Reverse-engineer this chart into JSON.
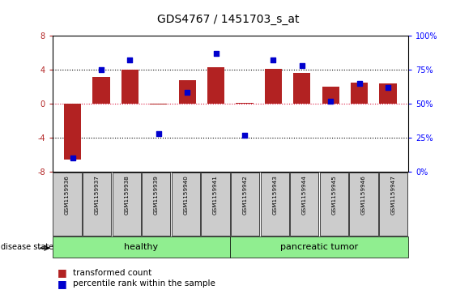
{
  "title": "GDS4767 / 1451703_s_at",
  "samples": [
    "GSM1159936",
    "GSM1159937",
    "GSM1159938",
    "GSM1159939",
    "GSM1159940",
    "GSM1159941",
    "GSM1159942",
    "GSM1159943",
    "GSM1159944",
    "GSM1159945",
    "GSM1159946",
    "GSM1159947"
  ],
  "transformed_count": [
    -6.5,
    3.1,
    4.0,
    -0.1,
    2.7,
    4.3,
    0.1,
    4.1,
    3.6,
    2.0,
    2.5,
    2.4
  ],
  "percentile_rank": [
    10,
    75,
    82,
    28,
    58,
    87,
    27,
    82,
    78,
    52,
    65,
    62
  ],
  "ylim": [
    -8,
    8
  ],
  "ylim_right": [
    0,
    100
  ],
  "yticks_left": [
    -8,
    -4,
    0,
    4,
    8
  ],
  "yticks_right": [
    0,
    25,
    50,
    75,
    100
  ],
  "bar_color": "#B22222",
  "dot_color": "#0000CD",
  "hline_color": "#DC143C",
  "bg_color": "#FFFFFF",
  "label_bg": "#CCCCCC",
  "healthy_color": "#90EE90",
  "tumor_color": "#90EE90",
  "title_fontsize": 10,
  "healthy_range": [
    0,
    5
  ],
  "tumor_range": [
    6,
    11
  ]
}
